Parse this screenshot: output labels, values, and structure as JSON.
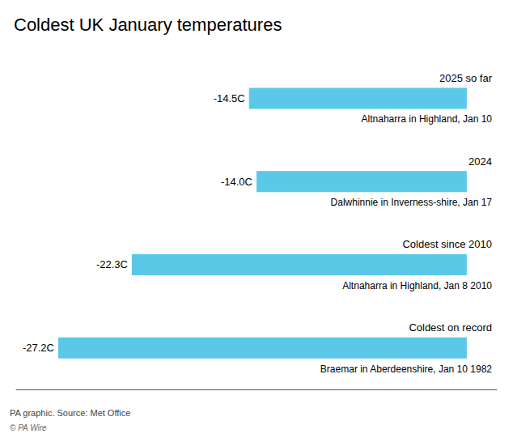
{
  "chart_data": {
    "type": "bar",
    "orientation": "horizontal",
    "title": "Coldest UK January temperatures",
    "categories": [
      "2025 so far",
      "2024",
      "Coldest since 2010",
      "Coldest on record"
    ],
    "sublabels": [
      "Altnaharra in Highland, Jan 10",
      "Dalwhinnie in Inverness-shire, Jan 17",
      "Altnaharra in Highland, Jan 8 2010",
      "Braemar in Aberdeenshire, Jan 10 1982"
    ],
    "values": [
      -14.5,
      -14.0,
      -22.3,
      -27.2
    ],
    "value_labels": [
      "-14.5C",
      "-14.0C",
      "-22.3C",
      "-27.2C"
    ],
    "data_labels": true,
    "color": "#5BC8E8",
    "xlim": [
      -30,
      2
    ],
    "tick_labels": false,
    "grid": false,
    "annotations": [
      "PA graphic. Source: Met Office",
      "© PA Wire"
    ]
  }
}
